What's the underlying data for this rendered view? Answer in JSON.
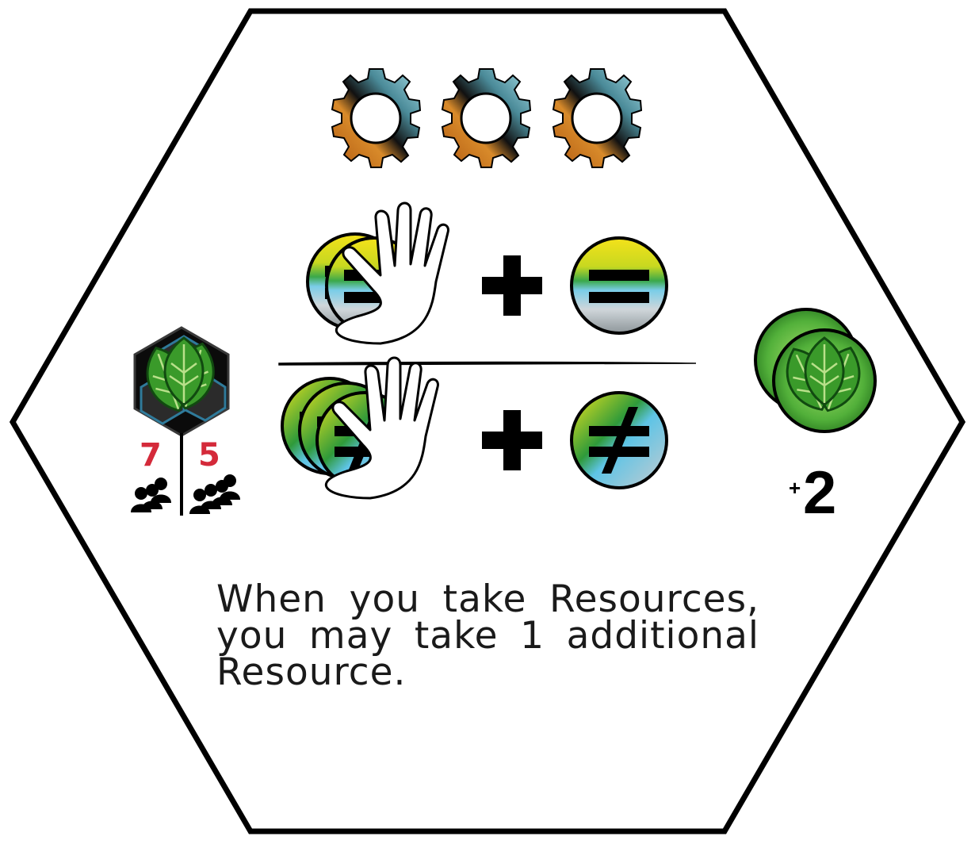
{
  "card": {
    "cost": {
      "gear_count": 3,
      "icon": "gear-icon"
    },
    "condition_same": {
      "hand_tokens": 2,
      "operator": "+",
      "symbol": "equals",
      "icon": "hand-icon"
    },
    "condition_different": {
      "hand_tokens": 3,
      "operator": "+",
      "symbol": "not-equal",
      "icon": "hand-icon"
    },
    "resource": {
      "type": "leaf",
      "icon": "leaf-icon"
    },
    "player_counts": [
      {
        "value": "7",
        "icon": "three-players-icon"
      },
      {
        "value": "5",
        "icon": "four-players-icon"
      }
    ],
    "bonus": {
      "plus": "+",
      "amount": "2",
      "icon": "leaf-token-icon"
    },
    "ability_text": "When you take Resources, you may take 1 additional Resource.",
    "colors": {
      "outline": "#000000",
      "player_number": "#d42a3a",
      "leaf_green": "#3a9a2a",
      "gear_copper": "#c8741c",
      "gear_steel": "#6fb8c8"
    }
  }
}
